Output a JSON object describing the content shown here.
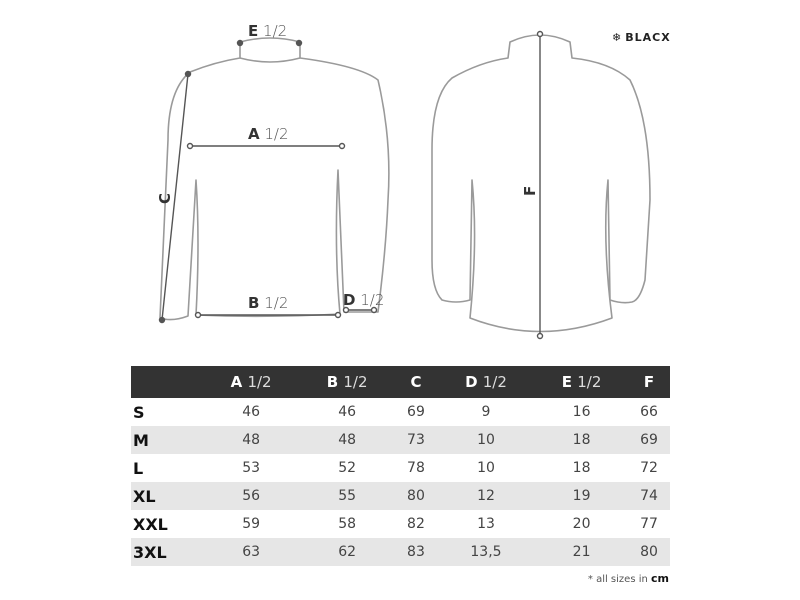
{
  "brand": "BLACX",
  "brand_icon": "snowflake-icon",
  "diagram_labels": {
    "e": {
      "letter": "E",
      "fraction": "1/2"
    },
    "a": {
      "letter": "A",
      "fraction": "1/2"
    },
    "c": {
      "letter": "C"
    },
    "b": {
      "letter": "B",
      "fraction": "1/2"
    },
    "d": {
      "letter": "D",
      "fraction": "1/2"
    },
    "f": {
      "letter": "F"
    }
  },
  "table": {
    "headers": [
      {
        "letter": "",
        "fraction": ""
      },
      {
        "letter": "A",
        "fraction": "1/2"
      },
      {
        "letter": "B",
        "fraction": "1/2"
      },
      {
        "letter": "C",
        "fraction": ""
      },
      {
        "letter": "D",
        "fraction": "1/2"
      },
      {
        "letter": "E",
        "fraction": "1/2"
      },
      {
        "letter": "F",
        "fraction": ""
      }
    ],
    "rows": [
      [
        "S",
        "46",
        "46",
        "69",
        "9",
        "16",
        "66"
      ],
      [
        "M",
        "48",
        "48",
        "73",
        "10",
        "18",
        "69"
      ],
      [
        "L",
        "53",
        "52",
        "78",
        "10",
        "18",
        "72"
      ],
      [
        "XL",
        "56",
        "55",
        "80",
        "12",
        "19",
        "74"
      ],
      [
        "XXL",
        "59",
        "58",
        "82",
        "13",
        "20",
        "77"
      ],
      [
        "3XL",
        "63",
        "62",
        "83",
        "13,5",
        "21",
        "80"
      ]
    ],
    "header_color": "#333333",
    "stripe_color": "#e6e6e6"
  },
  "note": {
    "prefix": "* all sizes in",
    "unit": "cm"
  }
}
